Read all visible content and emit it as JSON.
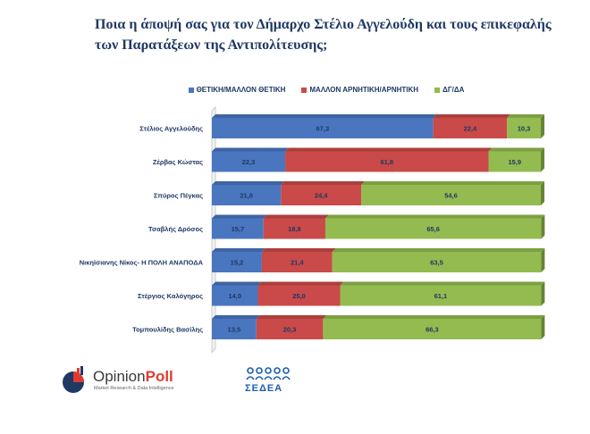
{
  "chart_data": {
    "type": "bar",
    "orientation": "horizontal",
    "stacked": true,
    "title": "Ποια η άποψή σας για τον Δήμαρχο Στέλιο Αγγελούδη και τους επικεφαλής των Παρατάξεων της Αντιπολίτευσης;",
    "categories": [
      "Στέλιος Αγγελούδης",
      "Ζέρβας Κώστας",
      "Σπύρος Πέγκας",
      "Τσαβλής Δρόσος",
      "Νικηϊσιανης Νίκος- Η ΠΟΛΗ ΑΝΑΠΟΔΑ",
      "Στέργιος Καλόγηρος",
      "Τομπουλίδης Βασίλης"
    ],
    "series": [
      {
        "name": "ΘΕΤΙΚΗ/ΜΑΛΛΟΝ ΘΕΤΙΚΗ",
        "color": "#4a76c0",
        "values": [
          67.3,
          22.3,
          21.0,
          15.7,
          15.2,
          14.0,
          13.5
        ],
        "labels": [
          "67,3",
          "22,3",
          "21,0",
          "15,7",
          "15,2",
          "14,0",
          "13,5"
        ]
      },
      {
        "name": "ΜΑΛΛΟΝ ΑΡΝΗΤΙΚΗ/ΑΡΝΗΤΙΚΗ",
        "color": "#c94a48",
        "values": [
          22.4,
          61.8,
          24.4,
          18.8,
          21.4,
          25.0,
          20.3
        ],
        "labels": [
          "22,4",
          "61,8",
          "24,4",
          "18,8",
          "21,4",
          "25,0",
          "20,3"
        ]
      },
      {
        "name": "ΔΓ/ΔΑ",
        "color": "#93bb4f",
        "values": [
          10.3,
          15.9,
          54.6,
          65.6,
          63.5,
          61.1,
          66.3
        ],
        "labels": [
          "10,3",
          "15,9",
          "54,6",
          "65,6",
          "63,5",
          "61,1",
          "66,3"
        ]
      }
    ],
    "xlim": [
      0,
      100
    ],
    "legend_position": "top"
  },
  "logos": {
    "opinion_poll": {
      "name_part1": "Opinion",
      "name_part2": "Poll",
      "tagline": "Market Research & Data Intelligence"
    },
    "sedea": {
      "name": "ΣΕΔΕΑ"
    }
  }
}
